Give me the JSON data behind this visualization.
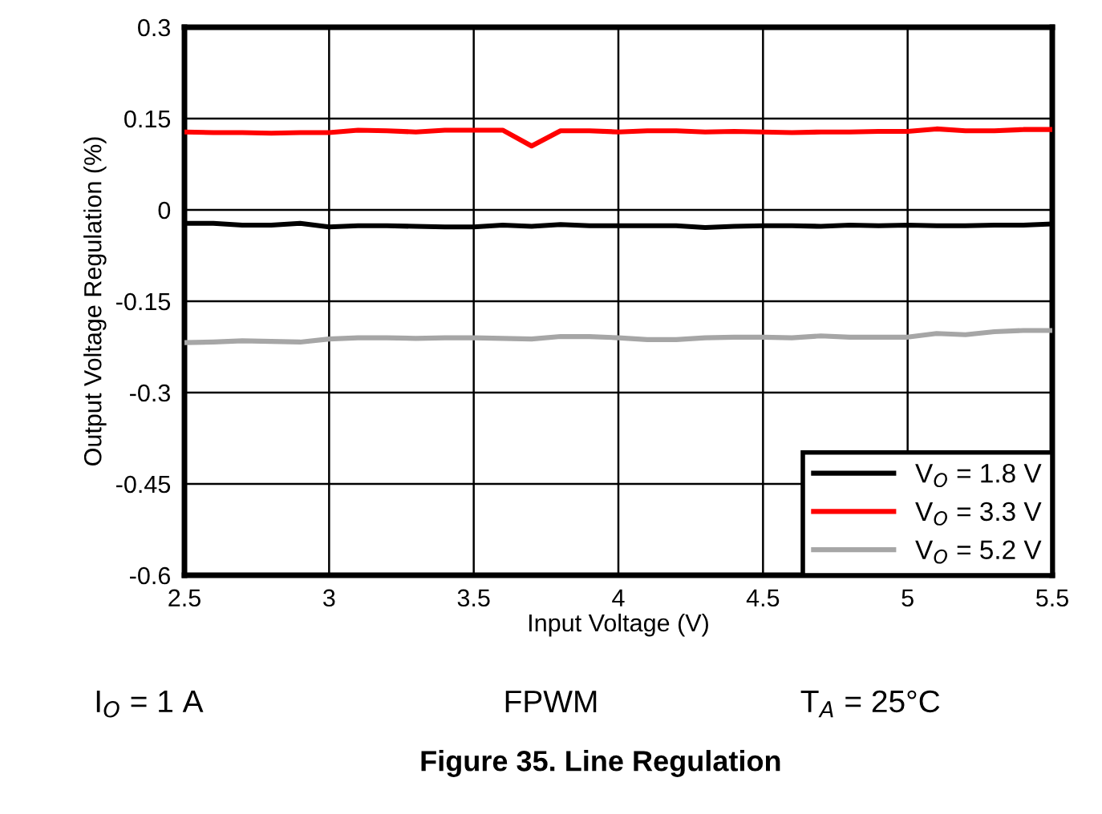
{
  "chart_data": {
    "type": "line",
    "xlabel": "Input Voltage (V)",
    "ylabel": "Output Voltage Regulation (%)",
    "x": [
      2.5,
      2.6,
      2.7,
      2.8,
      2.9,
      3.0,
      3.1,
      3.2,
      3.3,
      3.4,
      3.5,
      3.6,
      3.7,
      3.8,
      3.9,
      4.0,
      4.1,
      4.2,
      4.3,
      4.4,
      4.5,
      4.6,
      4.7,
      4.8,
      4.9,
      5.0,
      5.1,
      5.2,
      5.3,
      5.4,
      5.5
    ],
    "series": [
      {
        "name": "V$_{O}$ = 1.8 V",
        "color": "#000000",
        "values": [
          -0.022,
          -0.022,
          -0.025,
          -0.025,
          -0.022,
          -0.028,
          -0.026,
          -0.026,
          -0.027,
          -0.028,
          -0.028,
          -0.025,
          -0.027,
          -0.024,
          -0.026,
          -0.026,
          -0.026,
          -0.026,
          -0.029,
          -0.027,
          -0.026,
          -0.026,
          -0.027,
          -0.025,
          -0.026,
          -0.025,
          -0.026,
          -0.026,
          -0.025,
          -0.025,
          -0.023
        ]
      },
      {
        "name": "V$_{O}$ = 3.3 V",
        "color": "#ff0000",
        "values": [
          0.128,
          0.127,
          0.127,
          0.126,
          0.127,
          0.127,
          0.131,
          0.13,
          0.128,
          0.131,
          0.131,
          0.131,
          0.105,
          0.13,
          0.13,
          0.128,
          0.13,
          0.13,
          0.128,
          0.129,
          0.128,
          0.127,
          0.128,
          0.128,
          0.129,
          0.129,
          0.133,
          0.13,
          0.13,
          0.132,
          0.132
        ]
      },
      {
        "name": "V$_{O}$ = 5.2 V",
        "color": "#a6a6a6",
        "values": [
          -0.218,
          -0.217,
          -0.215,
          -0.216,
          -0.217,
          -0.212,
          -0.21,
          -0.21,
          -0.211,
          -0.21,
          -0.21,
          -0.211,
          -0.212,
          -0.208,
          -0.208,
          -0.21,
          -0.213,
          -0.213,
          -0.21,
          -0.209,
          -0.209,
          -0.21,
          -0.207,
          -0.209,
          -0.209,
          -0.209,
          -0.203,
          -0.205,
          -0.2,
          -0.198,
          -0.198
        ]
      }
    ],
    "xlim": [
      2.5,
      5.5
    ],
    "xticks": [
      2.5,
      3,
      3.5,
      4,
      4.5,
      5,
      5.5
    ],
    "ylim": [
      -0.6,
      0.3
    ],
    "yticks": [
      -0.6,
      -0.45,
      -0.3,
      -0.15,
      0,
      0.15,
      0.3
    ],
    "grid": true,
    "legend": "bottom right",
    "marker": "none",
    "line_style": "solid",
    "annotations": [
      "I$_{O}$ = 1 A",
      "FPWM",
      "T$_{A}$ = 25°C",
      "Figure 35. Line Regulation"
    ]
  }
}
